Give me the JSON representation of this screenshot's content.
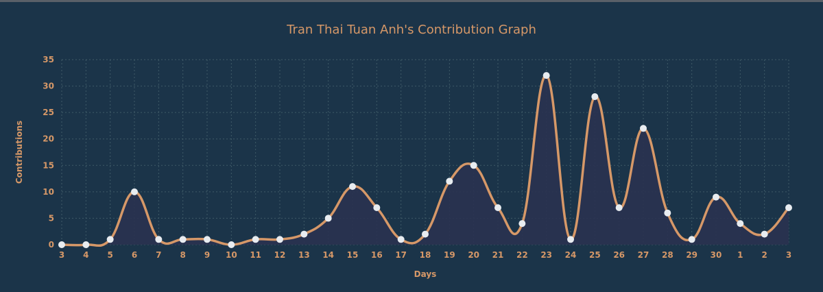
{
  "colors": {
    "background": "#1b3449",
    "accent": "#d69868",
    "grid": "#3f5a68",
    "fill": "#2a3250",
    "point": "#e8ecf0"
  },
  "chart_data": {
    "type": "area",
    "title": "Tran Thai Tuan Anh's Contribution Graph",
    "xlabel": "Days",
    "ylabel": "Contributions",
    "categories": [
      "3",
      "4",
      "5",
      "6",
      "7",
      "8",
      "9",
      "10",
      "11",
      "12",
      "13",
      "14",
      "15",
      "16",
      "17",
      "18",
      "19",
      "20",
      "21",
      "22",
      "23",
      "24",
      "25",
      "26",
      "27",
      "28",
      "29",
      "30",
      "1",
      "2",
      "3"
    ],
    "series": [
      {
        "values": [
          0,
          0,
          1,
          10,
          1,
          1,
          1,
          0,
          1,
          1,
          2,
          5,
          11,
          7,
          1,
          2,
          12,
          15,
          7,
          4,
          32,
          1,
          28,
          7,
          22,
          6,
          1,
          9,
          4,
          2,
          7
        ]
      }
    ],
    "ylim": [
      0,
      35
    ],
    "yticks": [
      0,
      5,
      10,
      15,
      20,
      25,
      30,
      35
    ],
    "grid": true,
    "smooth": true,
    "markers": true
  }
}
